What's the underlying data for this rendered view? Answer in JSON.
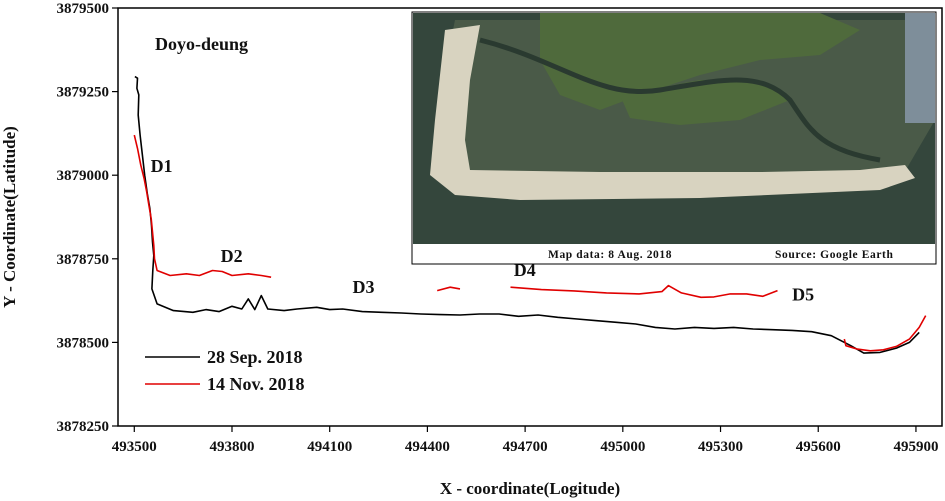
{
  "chart_data": {
    "type": "line",
    "title": "Doyo-deung",
    "xlabel": "X - coordinate(Logitude)",
    "ylabel": "Y - Coordinate(Latitude)",
    "xlim": [
      493450,
      495980
    ],
    "ylim": [
      3878250,
      3879500
    ],
    "xticks": [
      493500,
      493800,
      494100,
      494400,
      494700,
      495000,
      495300,
      495600,
      495900
    ],
    "yticks": [
      3878250,
      3878500,
      3878750,
      3879000,
      3879250,
      3879500
    ],
    "grid": false,
    "legend_position": "bottom-left",
    "series": [
      {
        "name": "28 Sep. 2018",
        "color": "#000000",
        "points": [
          [
            493502,
            3879295
          ],
          [
            493510,
            3879290
          ],
          [
            493508,
            3879260
          ],
          [
            493514,
            3879240
          ],
          [
            493512,
            3879180
          ],
          [
            493518,
            3879120
          ],
          [
            493525,
            3879060
          ],
          [
            493532,
            3879000
          ],
          [
            493540,
            3878945
          ],
          [
            493548,
            3878900
          ],
          [
            493553,
            3878850
          ],
          [
            493556,
            3878800
          ],
          [
            493560,
            3878760
          ],
          [
            493557,
            3878715
          ],
          [
            493554,
            3878660
          ],
          [
            493570,
            3878615
          ],
          [
            493620,
            3878595
          ],
          [
            493680,
            3878590
          ],
          [
            493720,
            3878598
          ],
          [
            493760,
            3878592
          ],
          [
            493800,
            3878608
          ],
          [
            493830,
            3878600
          ],
          [
            493850,
            3878630
          ],
          [
            493870,
            3878598
          ],
          [
            493890,
            3878640
          ],
          [
            493910,
            3878600
          ],
          [
            493960,
            3878595
          ],
          [
            494000,
            3878600
          ],
          [
            494060,
            3878605
          ],
          [
            494100,
            3878598
          ],
          [
            494140,
            3878600
          ],
          [
            494200,
            3878592
          ],
          [
            494260,
            3878590
          ],
          [
            494320,
            3878588
          ],
          [
            494380,
            3878585
          ],
          [
            494440,
            3878583
          ],
          [
            494500,
            3878582
          ],
          [
            494560,
            3878585
          ],
          [
            494620,
            3878585
          ],
          [
            494680,
            3878578
          ],
          [
            494740,
            3878582
          ],
          [
            494800,
            3878575
          ],
          [
            494860,
            3878570
          ],
          [
            494920,
            3878565
          ],
          [
            494980,
            3878560
          ],
          [
            495040,
            3878555
          ],
          [
            495100,
            3878545
          ],
          [
            495160,
            3878540
          ],
          [
            495220,
            3878545
          ],
          [
            495280,
            3878542
          ],
          [
            495340,
            3878545
          ],
          [
            495400,
            3878540
          ],
          [
            495460,
            3878538
          ],
          [
            495520,
            3878536
          ],
          [
            495580,
            3878532
          ],
          [
            495640,
            3878520
          ],
          [
            495700,
            3878490
          ],
          [
            495740,
            3878468
          ],
          [
            495790,
            3878470
          ],
          [
            495840,
            3878483
          ],
          [
            495880,
            3878500
          ],
          [
            495910,
            3878530
          ]
        ]
      },
      {
        "name": "14 Nov. 2018",
        "color": "#e00000",
        "segments": [
          [
            [
              493500,
              3879120
            ],
            [
              493510,
              3879080
            ],
            [
              493520,
              3879030
            ],
            [
              493530,
              3878990
            ],
            [
              493538,
              3878950
            ],
            [
              493545,
              3878910
            ],
            [
              493552,
              3878870
            ],
            [
              493556,
              3878830
            ],
            [
              493560,
              3878790
            ],
            [
              493562,
              3878750
            ],
            [
              493570,
              3878715
            ],
            [
              493610,
              3878700
            ],
            [
              493660,
              3878705
            ],
            [
              493700,
              3878700
            ],
            [
              493740,
              3878715
            ],
            [
              493770,
              3878712
            ],
            [
              493800,
              3878700
            ],
            [
              493850,
              3878705
            ],
            [
              493890,
              3878700
            ],
            [
              493920,
              3878695
            ]
          ],
          [
            [
              494430,
              3878655
            ],
            [
              494470,
              3878665
            ],
            [
              494500,
              3878660
            ]
          ],
          [
            [
              494655,
              3878665
            ],
            [
              494750,
              3878658
            ],
            [
              494850,
              3878654
            ],
            [
              494950,
              3878648
            ],
            [
              495050,
              3878645
            ],
            [
              495120,
              3878652
            ],
            [
              495140,
              3878670
            ],
            [
              495180,
              3878648
            ],
            [
              495240,
              3878635
            ],
            [
              495280,
              3878636
            ],
            [
              495330,
              3878645
            ],
            [
              495380,
              3878645
            ],
            [
              495430,
              3878638
            ],
            [
              495475,
              3878655
            ]
          ],
          [
            [
              495680,
              3878510
            ],
            [
              495685,
              3878490
            ],
            [
              495720,
              3878480
            ],
            [
              495760,
              3878475
            ],
            [
              495800,
              3878478
            ],
            [
              495840,
              3878488
            ],
            [
              495880,
              3878510
            ],
            [
              495910,
              3878545
            ],
            [
              495930,
              3878580
            ]
          ]
        ]
      }
    ],
    "annotations": [
      {
        "text": "D1",
        "x": 493550,
        "y": 3879010
      },
      {
        "text": "D2",
        "x": 493765,
        "y": 3878740
      },
      {
        "text": "D3",
        "x": 494170,
        "y": 3878648
      },
      {
        "text": "D4",
        "x": 494665,
        "y": 3878698
      },
      {
        "text": "D5",
        "x": 495520,
        "y": 3878625
      }
    ]
  },
  "inset": {
    "caption_left": "Map data: 8 Aug. 2018",
    "caption_right": "Source: Google Earth",
    "colors": {
      "sea": "#34463c",
      "flat": "#4a5a48",
      "sand": "#d8d3c0",
      "vegetation": "#4f6a3c",
      "channel": "#2a3a30"
    }
  }
}
